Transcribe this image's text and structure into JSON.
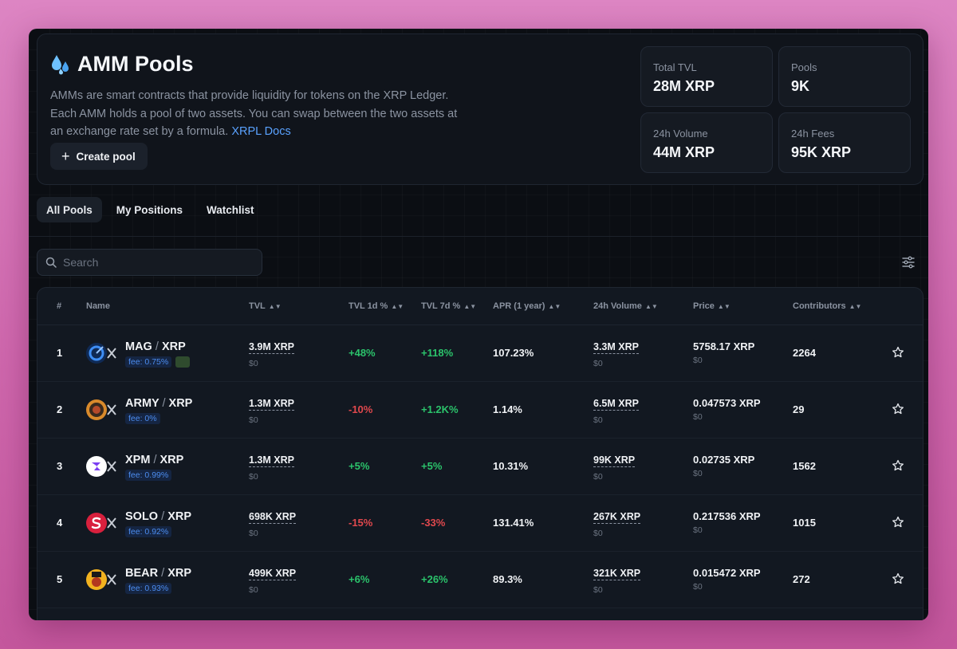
{
  "header": {
    "title": "AMM Pools",
    "description": "AMMs are smart contracts that provide liquidity for tokens on the XRP Ledger. Each AMM holds a pool of two assets. You can swap between the two assets at an exchange rate set by a formula.",
    "docs_link": "XRPL Docs",
    "create_pool_label": "Create pool"
  },
  "stats": {
    "total_tvl_label": "Total TVL",
    "total_tvl_value": "28M XRP",
    "pools_label": "Pools",
    "pools_value": "9K",
    "volume_label": "24h Volume",
    "volume_value": "44M XRP",
    "fees_label": "24h Fees",
    "fees_value": "95K XRP"
  },
  "tabs": [
    "All Pools",
    "My Positions",
    "Watchlist"
  ],
  "search": {
    "placeholder": "Search"
  },
  "columns": [
    "#",
    "Name",
    "TVL",
    "TVL 1d %",
    "TVL 7d %",
    "APR (1 year)",
    "24h Volume",
    "Price",
    "Contributors"
  ],
  "rows": [
    {
      "rank": "1",
      "token": "MAG",
      "base": "XRP",
      "fee": "fee: 0.75%",
      "tvl": "3.9M XRP",
      "tvl_usd": "$0",
      "tvl1d": "+48%",
      "tvl7d": "+118%",
      "apr": "107.23%",
      "vol": "3.3M XRP",
      "vol_usd": "$0",
      "price": "5758.17 XRP",
      "price_usd": "$0",
      "contributors": "2264"
    },
    {
      "rank": "2",
      "token": "ARMY",
      "base": "XRP",
      "fee": "fee: 0%",
      "tvl": "1.3M XRP",
      "tvl_usd": "$0",
      "tvl1d": "-10%",
      "tvl7d": "+1.2K%",
      "apr": "1.14%",
      "vol": "6.5M XRP",
      "vol_usd": "$0",
      "price": "0.047573 XRP",
      "price_usd": "$0",
      "contributors": "29"
    },
    {
      "rank": "3",
      "token": "XPM",
      "base": "XRP",
      "fee": "fee: 0.99%",
      "tvl": "1.3M XRP",
      "tvl_usd": "$0",
      "tvl1d": "+5%",
      "tvl7d": "+5%",
      "apr": "10.31%",
      "vol": "99K XRP",
      "vol_usd": "$0",
      "price": "0.02735 XRP",
      "price_usd": "$0",
      "contributors": "1562"
    },
    {
      "rank": "4",
      "token": "SOLO",
      "base": "XRP",
      "fee": "fee: 0.92%",
      "tvl": "698K XRP",
      "tvl_usd": "$0",
      "tvl1d": "-15%",
      "tvl7d": "-33%",
      "apr": "131.41%",
      "vol": "267K XRP",
      "vol_usd": "$0",
      "price": "0.217536 XRP",
      "price_usd": "$0",
      "contributors": "1015"
    },
    {
      "rank": "5",
      "token": "BEAR",
      "base": "XRP",
      "fee": "fee: 0.93%",
      "tvl": "499K XRP",
      "tvl_usd": "$0",
      "tvl1d": "+6%",
      "tvl7d": "+26%",
      "apr": "89.3%",
      "vol": "321K XRP",
      "vol_usd": "$0",
      "price": "0.015472 XRP",
      "price_usd": "$0",
      "contributors": "272"
    }
  ],
  "colors": {
    "positive": "#2bc36b",
    "negative": "#e0484d",
    "link": "#5aa2ff"
  },
  "icons": [
    "droplets-icon",
    "plus-icon",
    "search-icon",
    "filter-sliders-icon",
    "star-icon"
  ]
}
